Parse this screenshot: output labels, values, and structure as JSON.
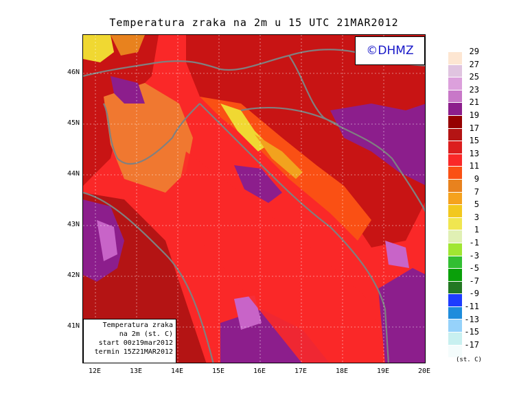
{
  "title": "Temperatura zraka na 2m u 15 UTC 21MAR2012",
  "logo": "©DHMZ",
  "info_box": {
    "line1": "Temperatura zraka",
    "line2": "na 2m (st. C)",
    "line3": "start 00z19mar2012",
    "line4": "termin 15Z21MAR2012"
  },
  "y_ticks": [
    "46N",
    "45N",
    "44N",
    "43N",
    "42N",
    "41N"
  ],
  "x_ticks": [
    "12E",
    "13E",
    "14E",
    "15E",
    "16E",
    "17E",
    "18E",
    "19E",
    "20E"
  ],
  "legend": {
    "unit": "(st. C)",
    "labels": [
      "29",
      "27",
      "25",
      "23",
      "21",
      "19",
      "17",
      "15",
      "13",
      "11",
      "9",
      "7",
      "5",
      "3",
      "1",
      "-1",
      "-3",
      "-5",
      "-7",
      "-9",
      "-11",
      "-13",
      "-15",
      "-17"
    ],
    "colors": [
      "#fde6d2",
      "#e0c4e0",
      "#dca0dc",
      "#c878c8",
      "#8c1e8c",
      "#960000",
      "#b41414",
      "#dc1e1e",
      "#fa2828",
      "#fa5014",
      "#e8821e",
      "#f5a21e",
      "#f2c81e",
      "#f0e650",
      "#e0f0b4",
      "#a0e632",
      "#32be32",
      "#0aa00a",
      "#237823",
      "#1e3cff",
      "#1e8cdc",
      "#96d2fa",
      "#c8f0f0",
      "#f4fcfc"
    ]
  },
  "colors": {
    "sea": "#fa2828",
    "warm_inland": "#c81414",
    "coast_orange": "#fa5014",
    "istria_orange": "#f07830",
    "hot_purple": "#8c1e8c",
    "hottest_violet": "#c864c8",
    "cold_yellow": "#f0d832",
    "border_gray": "#808080",
    "logo_blue": "#1616c8"
  }
}
